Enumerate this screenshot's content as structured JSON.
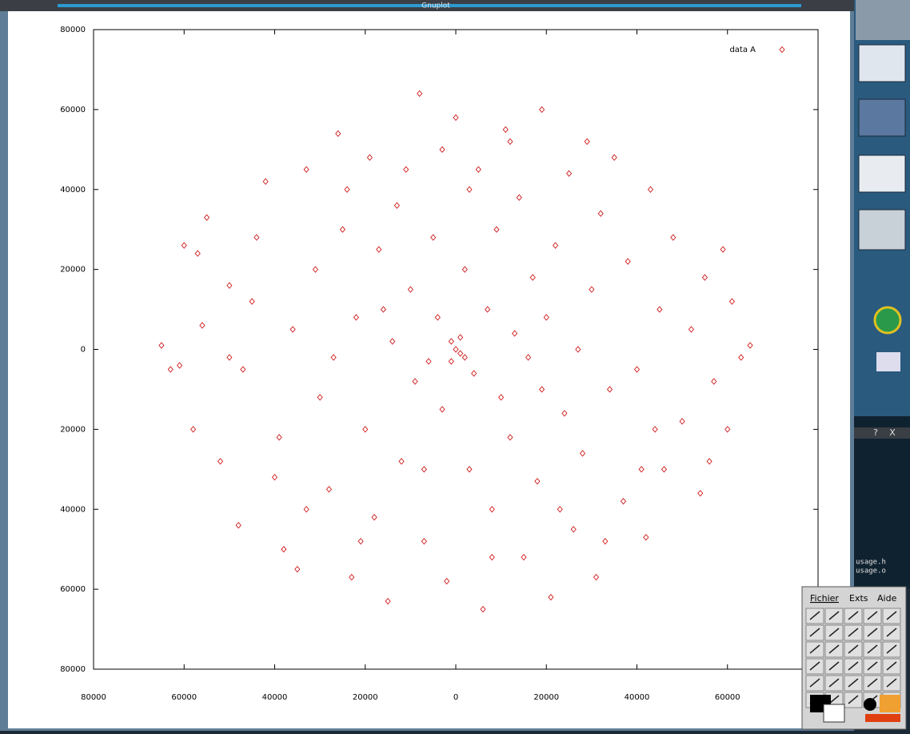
{
  "window": {
    "title": "Gnuplot"
  },
  "chart_data": {
    "type": "scatter",
    "x": [
      -65000,
      -63000,
      -60000,
      -57000,
      -55000,
      -52000,
      -50000,
      -48000,
      -45000,
      -42000,
      -40000,
      -38000,
      -36000,
      -35000,
      -33000,
      -31000,
      -30000,
      -28000,
      -26000,
      -25000,
      -23000,
      -22000,
      -20000,
      -19000,
      -18000,
      -17000,
      -15000,
      -14000,
      -13000,
      -12000,
      -10000,
      -9000,
      -8000,
      -7000,
      -6000,
      -5000,
      -4000,
      -3000,
      -2000,
      -1000,
      0,
      1000,
      1000,
      2000,
      -1000,
      0,
      2000,
      3000,
      4000,
      5000,
      6000,
      7000,
      8000,
      9000,
      10000,
      11000,
      12000,
      13000,
      14000,
      15000,
      16000,
      17000,
      18000,
      19000,
      20000,
      21000,
      22000,
      24000,
      25000,
      26000,
      27000,
      28000,
      30000,
      31000,
      32000,
      34000,
      35000,
      37000,
      38000,
      40000,
      42000,
      43000,
      45000,
      46000,
      48000,
      50000,
      52000,
      54000,
      55000,
      57000,
      59000,
      60000,
      61000,
      63000,
      65000,
      -58000,
      -50000,
      -44000,
      -47000,
      -39000,
      -33000,
      -27000,
      -24000,
      -21000,
      -16000,
      -11000,
      -7000,
      -3000,
      3000,
      8000,
      12000,
      19000,
      23000,
      29000,
      33000,
      41000,
      44000,
      56000,
      -56000,
      -61000
    ],
    "series": [
      {
        "name": "data A",
        "color": "#cc0000",
        "values": [
          1000,
          -5000,
          26000,
          24000,
          33000,
          -28000,
          16000,
          -44000,
          12000,
          42000,
          -32000,
          -50000,
          5000,
          -55000,
          45000,
          20000,
          -12000,
          -35000,
          54000,
          30000,
          -57000,
          8000,
          -20000,
          48000,
          -42000,
          25000,
          -63000,
          2000,
          36000,
          -28000,
          15000,
          -8000,
          64000,
          -48000,
          -3000,
          28000,
          8000,
          -15000,
          -58000,
          2000,
          0,
          -1000,
          3000,
          -2000,
          -3000,
          58000,
          20000,
          -30000,
          -6000,
          45000,
          -65000,
          10000,
          -40000,
          30000,
          -12000,
          55000,
          -22000,
          4000,
          38000,
          -52000,
          -2000,
          18000,
          -33000,
          60000,
          8000,
          -62000,
          26000,
          -16000,
          44000,
          -45000,
          0,
          -26000,
          15000,
          -57000,
          34000,
          -10000,
          48000,
          -38000,
          22000,
          -5000,
          -47000,
          40000,
          10000,
          -30000,
          28000,
          -18000,
          5000,
          -36000,
          18000,
          -8000,
          25000,
          -20000,
          12000,
          -2000,
          1000,
          -20000,
          -2000,
          28000,
          -5000,
          -22000,
          -40000,
          -2000,
          40000,
          -48000,
          10000,
          45000,
          -30000,
          50000,
          40000,
          -52000,
          52000,
          -10000,
          -40000,
          52000,
          -48000,
          -30000,
          -20000,
          -28000,
          6000,
          -4000
        ]
      }
    ],
    "xlim": [
      -80000,
      80000
    ],
    "xticks": [
      {
        "value": -80000,
        "label": "80000"
      },
      {
        "value": -60000,
        "label": "60000"
      },
      {
        "value": -40000,
        "label": "40000"
      },
      {
        "value": -20000,
        "label": "20000"
      },
      0,
      20000,
      40000,
      60000
    ],
    "ylim": [
      -80000,
      80000
    ],
    "yticks": [
      {
        "value": -80000,
        "label": "80000"
      },
      {
        "value": -60000,
        "label": "60000"
      },
      {
        "value": -40000,
        "label": "40000"
      },
      {
        "value": -20000,
        "label": "20000"
      },
      0,
      20000,
      40000,
      60000,
      80000
    ],
    "legend": "top-right",
    "grid": false
  },
  "dialog": {
    "buttons": [
      "?",
      "X"
    ]
  },
  "terminal": {
    "lines": [
      "usage.h",
      "usage.o"
    ]
  },
  "toolbox": {
    "menu": [
      "Fichier",
      "Exts",
      "Aide"
    ]
  }
}
